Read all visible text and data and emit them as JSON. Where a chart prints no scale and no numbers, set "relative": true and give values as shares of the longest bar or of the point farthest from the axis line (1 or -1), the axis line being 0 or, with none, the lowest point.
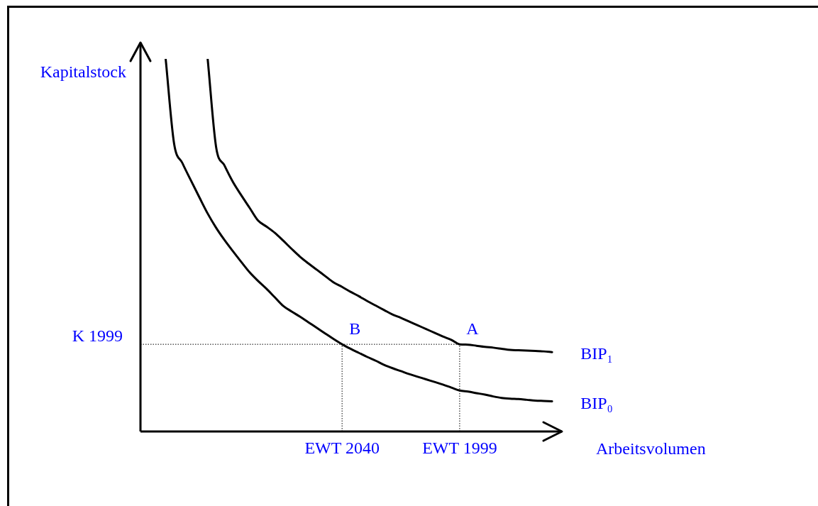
{
  "chart_data": {
    "type": "line",
    "relative": true,
    "xlabel": "Arbeitsvolumen",
    "ylabel": "Kapitalstock",
    "categories": [
      null,
      null,
      null,
      null,
      null,
      null,
      null,
      null,
      null,
      null,
      null,
      null,
      null,
      null,
      null,
      null,
      null,
      null,
      null,
      null,
      null,
      null,
      null,
      null,
      "EWT 2040",
      null,
      null,
      null,
      null,
      null,
      null,
      null,
      null,
      null,
      null,
      null,
      null,
      null,
      "EWT 1999",
      null,
      null,
      null,
      null,
      null,
      null,
      null,
      null,
      null,
      null,
      null,
      null
    ],
    "series": [
      {
        "name": "BIP₁",
        "color": "#000000",
        "values": [
          null,
          null,
          null,
          null,
          null,
          null,
          null,
          null,
          1.0,
          0.764,
          0.714,
          0.67,
          0.634,
          0.6,
          0.566,
          0.55,
          0.533,
          0.512,
          0.49,
          0.469,
          0.451,
          0.434,
          0.417,
          0.4,
          0.388,
          0.375,
          0.363,
          0.35,
          0.338,
          0.326,
          0.314,
          0.305,
          0.295,
          0.285,
          0.275,
          0.265,
          0.255,
          0.246,
          0.234,
          0.233,
          0.23,
          0.227,
          0.225,
          0.222,
          0.219,
          0.218,
          0.217,
          0.216,
          0.215,
          0.213,
          null
        ]
      },
      {
        "name": "BIP₀",
        "color": "#000000",
        "values": [
          null,
          null,
          null,
          1.0,
          0.773,
          0.72,
          0.674,
          0.629,
          0.585,
          0.547,
          0.514,
          0.484,
          0.455,
          0.427,
          0.404,
          0.383,
          0.36,
          0.337,
          0.322,
          0.308,
          0.293,
          0.278,
          0.263,
          0.248,
          0.234,
          0.222,
          0.211,
          0.2,
          0.19,
          0.179,
          0.17,
          0.162,
          0.154,
          0.147,
          0.14,
          0.133,
          0.126,
          0.118,
          0.11,
          0.107,
          0.103,
          0.099,
          0.094,
          0.09,
          0.088,
          0.087,
          0.085,
          0.083,
          0.082,
          0.081,
          null
        ]
      }
    ],
    "ref_lines": [
      {
        "axis": "y",
        "value": 0.234,
        "label": "K 1999"
      },
      {
        "axis": "x",
        "value": "EWT 2040",
        "label": null
      },
      {
        "axis": "x",
        "value": "EWT 1999",
        "label": null
      }
    ],
    "annotations": [
      {
        "text": "B",
        "x": "EWT 2040",
        "y": 0.234
      },
      {
        "text": "A",
        "x": "EWT 1999",
        "y": 0.234
      }
    ],
    "grid": false,
    "legend": false,
    "marker": "none",
    "line_style": "solid"
  }
}
